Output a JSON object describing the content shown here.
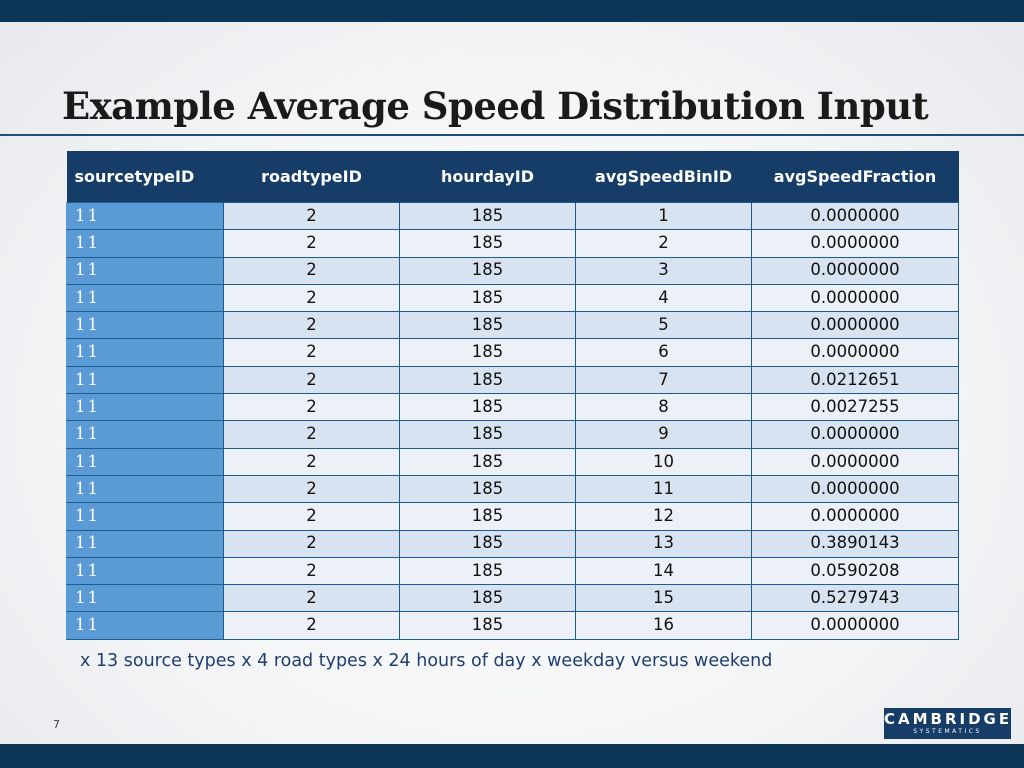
{
  "slide": {
    "title": "Example Average Speed Distribution Input",
    "page_number": "7",
    "footnote": "x 13 source types x 4 road types x 24 hours of day x weekday versus weekend",
    "logo": {
      "name": "CAMBRIDGE",
      "sub": "SYSTEMATICS"
    },
    "colors": {
      "dark_blue": "#163d67",
      "accent_blue": "#5b9bd5",
      "row_light": "#d8e3f1",
      "row_lighter": "#ecf1f8"
    }
  },
  "table": {
    "headers": [
      "sourcetypeID",
      "roadtypeID",
      "hourdayID",
      "avgSpeedBinID",
      "avgSpeedFraction"
    ],
    "rows": [
      [
        "11",
        "2",
        "185",
        "1",
        "0.0000000"
      ],
      [
        "11",
        "2",
        "185",
        "2",
        "0.0000000"
      ],
      [
        "11",
        "2",
        "185",
        "3",
        "0.0000000"
      ],
      [
        "11",
        "2",
        "185",
        "4",
        "0.0000000"
      ],
      [
        "11",
        "2",
        "185",
        "5",
        "0.0000000"
      ],
      [
        "11",
        "2",
        "185",
        "6",
        "0.0000000"
      ],
      [
        "11",
        "2",
        "185",
        "7",
        "0.0212651"
      ],
      [
        "11",
        "2",
        "185",
        "8",
        "0.0027255"
      ],
      [
        "11",
        "2",
        "185",
        "9",
        "0.0000000"
      ],
      [
        "11",
        "2",
        "185",
        "10",
        "0.0000000"
      ],
      [
        "11",
        "2",
        "185",
        "11",
        "0.0000000"
      ],
      [
        "11",
        "2",
        "185",
        "12",
        "0.0000000"
      ],
      [
        "11",
        "2",
        "185",
        "13",
        "0.3890143"
      ],
      [
        "11",
        "2",
        "185",
        "14",
        "0.0590208"
      ],
      [
        "11",
        "2",
        "185",
        "15",
        "0.5279743"
      ],
      [
        "11",
        "2",
        "185",
        "16",
        "0.0000000"
      ]
    ]
  }
}
